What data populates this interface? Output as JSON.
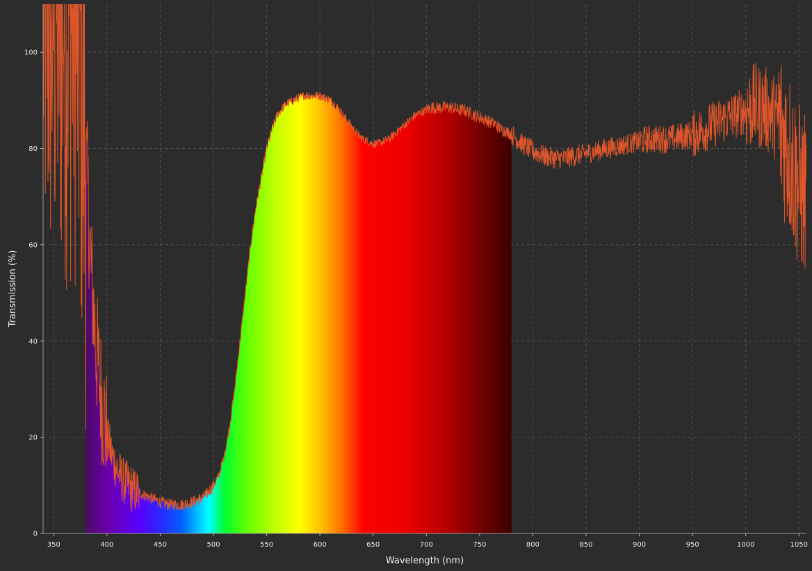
{
  "chart_data": {
    "type": "area",
    "xlabel": "Wavelength (nm)",
    "ylabel": "Transmission (%)",
    "xlim": [
      340,
      1057
    ],
    "ylim": [
      0,
      110
    ],
    "xticks": [
      350,
      400,
      450,
      500,
      550,
      600,
      650,
      700,
      750,
      800,
      850,
      900,
      950,
      1000,
      1050
    ],
    "yticks": [
      0,
      20,
      40,
      60,
      80,
      100
    ],
    "grid": true,
    "legend": "none",
    "visible_band_nm": [
      380,
      780
    ],
    "series": [
      {
        "color": "#e0562a",
        "fill": "visible-spectrum",
        "x": [
          340,
          345,
          350,
          355,
          360,
          365,
          370,
          375,
          380,
          385,
          390,
          395,
          400,
          405,
          410,
          415,
          420,
          425,
          430,
          435,
          440,
          445,
          450,
          455,
          460,
          465,
          470,
          475,
          480,
          485,
          490,
          495,
          500,
          505,
          510,
          515,
          520,
          525,
          530,
          535,
          540,
          545,
          550,
          555,
          560,
          565,
          570,
          575,
          580,
          585,
          590,
          595,
          600,
          605,
          610,
          615,
          620,
          625,
          630,
          635,
          640,
          645,
          650,
          655,
          660,
          665,
          670,
          675,
          680,
          685,
          690,
          695,
          700,
          705,
          710,
          715,
          720,
          725,
          730,
          735,
          740,
          745,
          750,
          755,
          760,
          765,
          770,
          775,
          780,
          790,
          800,
          810,
          820,
          830,
          840,
          850,
          860,
          870,
          880,
          890,
          900,
          910,
          920,
          930,
          940,
          950,
          960,
          970,
          980,
          990,
          1000,
          1010,
          1020,
          1030,
          1040,
          1050,
          1057
        ],
        "y": [
          110,
          110,
          110,
          110,
          110,
          110,
          110,
          100,
          80,
          55,
          38,
          28,
          20,
          16,
          13,
          11,
          10,
          9,
          8.5,
          8,
          7.5,
          7,
          6.5,
          6.2,
          6,
          6,
          6,
          6.2,
          6.5,
          7,
          7.5,
          8.5,
          10,
          12,
          16,
          22,
          30,
          40,
          50,
          60,
          68,
          74,
          80,
          84,
          87,
          88.5,
          89.5,
          90,
          90.5,
          91,
          91,
          91,
          91,
          90.5,
          90,
          89,
          87.5,
          86,
          84.5,
          83,
          82,
          81.5,
          81,
          81,
          81.5,
          82,
          83,
          84,
          85,
          86,
          87,
          87.5,
          88,
          88.5,
          88.5,
          88.5,
          88.5,
          88.5,
          88,
          88,
          87.5,
          87,
          86.5,
          86,
          85.5,
          85,
          84,
          83.5,
          83,
          81,
          79.5,
          78.5,
          78,
          78,
          78.5,
          79,
          79.5,
          80,
          80.5,
          81,
          81.5,
          82,
          82,
          82,
          82.5,
          83,
          84,
          85,
          86,
          87,
          88,
          89,
          88,
          86,
          80,
          72,
          70
        ]
      }
    ]
  }
}
